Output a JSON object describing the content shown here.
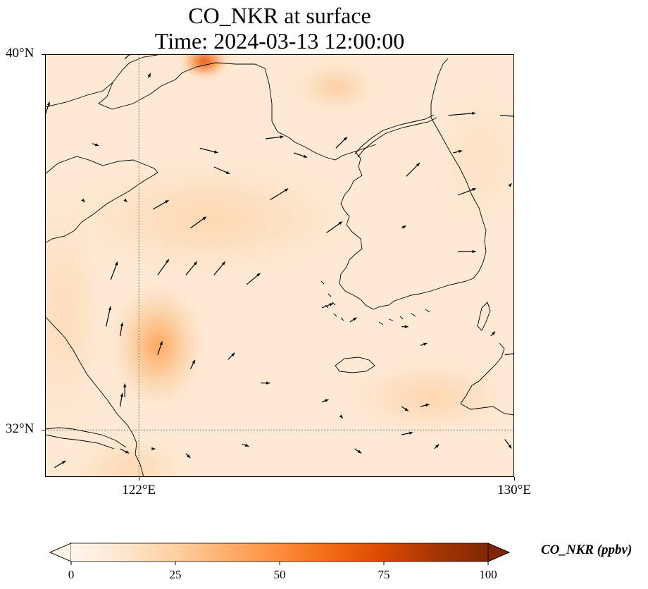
{
  "title": {
    "line1": "CO_NKR at surface",
    "line2": "Time: 2024-03-13 12:00:00"
  },
  "map": {
    "lon_range": [
      120,
      130
    ],
    "lat_range": [
      31,
      40
    ],
    "gridlines": {
      "lons": [
        122
      ],
      "lats": [
        32
      ],
      "style": "dotted"
    },
    "lat_ticks": [
      {
        "value": 40,
        "label": "40°N"
      },
      {
        "value": 32,
        "label": "32°N"
      }
    ],
    "lon_ticks": [
      {
        "value": 122,
        "label": "122°E"
      },
      {
        "value": 130,
        "label": "130°E"
      }
    ],
    "hotspots": [
      {
        "lon": 123.4,
        "lat": 39.85,
        "value": 95,
        "sx": 0.45,
        "sy": 0.3
      },
      {
        "lon": 122.4,
        "lat": 33.8,
        "value": 45,
        "sx": 0.9,
        "sy": 1.2
      },
      {
        "lon": 123.5,
        "lat": 36.5,
        "value": 22,
        "sx": 3.0,
        "sy": 1.2
      },
      {
        "lon": 126.2,
        "lat": 39.3,
        "value": 28,
        "sx": 0.8,
        "sy": 0.5
      },
      {
        "lon": 128.2,
        "lat": 32.7,
        "value": 24,
        "sx": 1.6,
        "sy": 0.7
      },
      {
        "lon": 120.4,
        "lat": 34.5,
        "value": 20,
        "sx": 0.8,
        "sy": 2.5
      },
      {
        "lon": 129.3,
        "lat": 37.8,
        "value": 16,
        "sx": 1.0,
        "sy": 1.5
      },
      {
        "lon": 121.8,
        "lat": 31.2,
        "value": 22,
        "sx": 1.2,
        "sy": 0.6
      }
    ],
    "wind_vectors": [
      {
        "lon": 120.0,
        "lat": 38.7,
        "u": 0.2,
        "v": 0.6
      },
      {
        "lon": 121.7,
        "lat": 39.9,
        "u": 0.3,
        "v": 0.3
      },
      {
        "lon": 122.2,
        "lat": 39.5,
        "u": 0.1,
        "v": 0.2
      },
      {
        "lon": 121.0,
        "lat": 38.1,
        "u": 0.3,
        "v": -0.1
      },
      {
        "lon": 123.3,
        "lat": 38.0,
        "u": 0.8,
        "v": -0.2
      },
      {
        "lon": 123.6,
        "lat": 37.6,
        "u": 0.7,
        "v": -0.3
      },
      {
        "lon": 124.7,
        "lat": 38.2,
        "u": 0.8,
        "v": 0.1
      },
      {
        "lon": 125.3,
        "lat": 37.9,
        "u": 0.6,
        "v": -0.2
      },
      {
        "lon": 126.2,
        "lat": 38.0,
        "u": 0.5,
        "v": 0.5
      },
      {
        "lon": 127.7,
        "lat": 37.4,
        "u": 0.6,
        "v": 0.6
      },
      {
        "lon": 128.6,
        "lat": 38.7,
        "u": 1.2,
        "v": 0.1
      },
      {
        "lon": 129.7,
        "lat": 38.7,
        "u": 1.4,
        "v": -0.1
      },
      {
        "lon": 128.7,
        "lat": 37.9,
        "u": 0.4,
        "v": 0.1
      },
      {
        "lon": 128.8,
        "lat": 37.0,
        "u": 0.8,
        "v": 0.3
      },
      {
        "lon": 129.9,
        "lat": 37.2,
        "u": 0.1,
        "v": 0.1
      },
      {
        "lon": 120.8,
        "lat": 36.9,
        "u": 0.1,
        "v": -0.1
      },
      {
        "lon": 121.7,
        "lat": 36.9,
        "u": 0.1,
        "v": -0.1
      },
      {
        "lon": 122.3,
        "lat": 36.7,
        "u": 0.7,
        "v": 0.4
      },
      {
        "lon": 123.1,
        "lat": 36.3,
        "u": 0.7,
        "v": 0.5
      },
      {
        "lon": 124.8,
        "lat": 36.9,
        "u": 0.8,
        "v": 0.5
      },
      {
        "lon": 126.0,
        "lat": 36.2,
        "u": 0.7,
        "v": 0.5
      },
      {
        "lon": 127.6,
        "lat": 36.3,
        "u": 0.2,
        "v": 0.1
      },
      {
        "lon": 128.8,
        "lat": 35.8,
        "u": 0.8,
        "v": 0.0
      },
      {
        "lon": 121.4,
        "lat": 35.2,
        "u": 0.3,
        "v": 0.8
      },
      {
        "lon": 122.4,
        "lat": 35.3,
        "u": 0.5,
        "v": 0.7
      },
      {
        "lon": 123.0,
        "lat": 35.3,
        "u": 0.5,
        "v": 0.6
      },
      {
        "lon": 123.6,
        "lat": 35.3,
        "u": 0.5,
        "v": 0.6
      },
      {
        "lon": 124.3,
        "lat": 35.1,
        "u": 0.6,
        "v": 0.5
      },
      {
        "lon": 125.9,
        "lat": 34.6,
        "u": 0.5,
        "v": 0.2
      },
      {
        "lon": 121.3,
        "lat": 34.2,
        "u": 0.2,
        "v": 0.9
      },
      {
        "lon": 121.6,
        "lat": 34.0,
        "u": 0.1,
        "v": 0.6
      },
      {
        "lon": 122.4,
        "lat": 33.6,
        "u": 0.2,
        "v": 0.6
      },
      {
        "lon": 123.1,
        "lat": 33.3,
        "u": 0.2,
        "v": 0.4
      },
      {
        "lon": 123.9,
        "lat": 33.5,
        "u": 0.3,
        "v": 0.3
      },
      {
        "lon": 126.5,
        "lat": 34.3,
        "u": 0.3,
        "v": 0.2
      },
      {
        "lon": 127.6,
        "lat": 34.2,
        "u": 0.3,
        "v": 0.0
      },
      {
        "lon": 128.0,
        "lat": 33.8,
        "u": 0.3,
        "v": 0.1
      },
      {
        "lon": 129.5,
        "lat": 34.0,
        "u": 0.2,
        "v": 0.2
      },
      {
        "lon": 129.8,
        "lat": 33.6,
        "u": 0.7,
        "v": 0.1
      },
      {
        "lon": 121.7,
        "lat": 32.7,
        "u": 0.0,
        "v": 0.6
      },
      {
        "lon": 121.6,
        "lat": 32.5,
        "u": 0.1,
        "v": 0.6
      },
      {
        "lon": 124.6,
        "lat": 33.0,
        "u": 0.4,
        "v": 0.0
      },
      {
        "lon": 125.9,
        "lat": 32.6,
        "u": 0.3,
        "v": 0.1
      },
      {
        "lon": 126.3,
        "lat": 32.3,
        "u": 0.1,
        "v": -0.1
      },
      {
        "lon": 127.6,
        "lat": 32.5,
        "u": 0.3,
        "v": -0.2
      },
      {
        "lon": 128.0,
        "lat": 32.5,
        "u": 0.4,
        "v": 0.1
      },
      {
        "lon": 122.3,
        "lat": 31.6,
        "u": 0.1,
        "v": 0.0
      },
      {
        "lon": 121.4,
        "lat": 31.0,
        "u": -0.1,
        "v": -0.5
      },
      {
        "lon": 122.0,
        "lat": 30.8,
        "u": 0.4,
        "v": -0.3
      },
      {
        "lon": 121.2,
        "lat": 30.7,
        "u": 0.4,
        "v": 0.5
      },
      {
        "lon": 120.2,
        "lat": 30.7,
        "u": 0.4,
        "v": -0.3
      },
      {
        "lon": 120.2,
        "lat": 31.2,
        "u": 0.5,
        "v": 0.3
      },
      {
        "lon": 120.9,
        "lat": 31.0,
        "u": 0.6,
        "v": -0.4
      },
      {
        "lon": 121.6,
        "lat": 31.6,
        "u": 0.4,
        "v": -0.2
      },
      {
        "lon": 122.1,
        "lat": 30.7,
        "u": 0.4,
        "v": -0.4
      },
      {
        "lon": 123.0,
        "lat": 31.5,
        "u": 0.2,
        "v": -0.2
      },
      {
        "lon": 124.2,
        "lat": 31.7,
        "u": 0.3,
        "v": -0.1
      },
      {
        "lon": 126.6,
        "lat": 31.6,
        "u": 0.3,
        "v": -0.2
      },
      {
        "lon": 127.6,
        "lat": 31.9,
        "u": 0.5,
        "v": 0.1
      },
      {
        "lon": 128.3,
        "lat": 31.6,
        "u": 0.2,
        "v": 0.2
      },
      {
        "lon": 129.8,
        "lat": 31.8,
        "u": 0.3,
        "v": -0.4
      },
      {
        "lon": 128.2,
        "lat": 31.0,
        "u": 0.2,
        "v": -0.1
      },
      {
        "lon": 128.5,
        "lat": 30.7,
        "u": 0.3,
        "v": -0.2
      }
    ]
  },
  "colorbar": {
    "vmin": 0,
    "vmax": 100,
    "ticks": [
      {
        "value": 0,
        "label": "0"
      },
      {
        "value": 25,
        "label": "25"
      },
      {
        "value": 50,
        "label": "50"
      },
      {
        "value": 75,
        "label": "75"
      },
      {
        "value": 100,
        "label": "100"
      }
    ],
    "label": "CO_NKR (ppbv)",
    "colormap": [
      "#fff5eb",
      "#fee6ce",
      "#fdd0a2",
      "#fdae6b",
      "#fd8d3c",
      "#f16913",
      "#d94801",
      "#a63603",
      "#7f2704"
    ],
    "extend": "both"
  }
}
